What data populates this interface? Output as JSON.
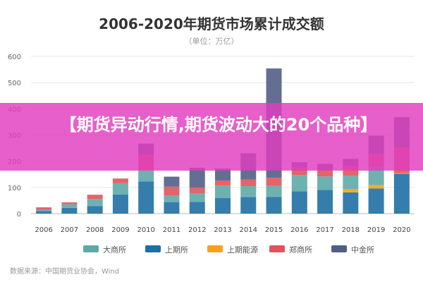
{
  "chart_data": {
    "type": "bar",
    "stacked": true,
    "title": "2006-2020年期货市场累计成交额",
    "subtitle": "（单位：万亿）",
    "categories": [
      "2006",
      "2007",
      "2008",
      "2009",
      "2010",
      "2011",
      "2012",
      "2013",
      "2014",
      "2015",
      "2016",
      "2017",
      "2018",
      "2019",
      "2020"
    ],
    "ylim": [
      0,
      600
    ],
    "yticks": [
      "0",
      "100",
      "200",
      "300",
      "400",
      "500",
      "600"
    ],
    "grid": true,
    "legend_position": "bottom",
    "series": [
      {
        "name": "上期所",
        "color": "#1f6fa3",
        "values": [
          10,
          22,
          29,
          73,
          123,
          44,
          45,
          60,
          63,
          64,
          85,
          90,
          81,
          96,
          152
        ]
      },
      {
        "name": "上期能源",
        "color": "#f5a21b",
        "values": [
          0,
          0,
          0,
          0,
          0,
          0,
          0,
          0,
          0,
          0,
          0,
          0,
          12,
          13,
          3
        ]
      },
      {
        "name": "大商所",
        "color": "#5ea9a8",
        "values": [
          5,
          14,
          27,
          43,
          42,
          25,
          33,
          47,
          42,
          42,
          62,
          52,
          52,
          69,
          0
        ]
      },
      {
        "name": "郑商所",
        "color": "#e0535a",
        "values": [
          9,
          7,
          16,
          18,
          61,
          34,
          21,
          19,
          25,
          31,
          31,
          23,
          38,
          50,
          98
        ]
      },
      {
        "name": "中金所",
        "color": "#535e86",
        "values": [
          0,
          0,
          0,
          0,
          41,
          38,
          76,
          46,
          100,
          417,
          18,
          25,
          26,
          70,
          115
        ]
      }
    ],
    "legend_order": [
      "大商所",
      "上期所",
      "上期能源",
      "郑商所",
      "中金所"
    ]
  },
  "banner": {
    "text": "【期货异动行情,期货波动大的20个品种】"
  },
  "source": "数据来源：中国期货业协会，Wind"
}
